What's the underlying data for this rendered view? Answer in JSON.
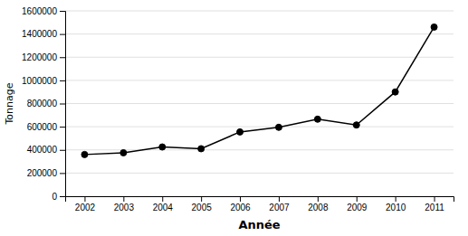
{
  "chart_data": {
    "type": "line",
    "x": [
      2002,
      2003,
      2004,
      2005,
      2006,
      2007,
      2008,
      2009,
      2010,
      2011
    ],
    "values": [
      360000,
      375000,
      425000,
      410000,
      555000,
      595000,
      665000,
      615000,
      900000,
      1460000
    ],
    "xlabel": "Année",
    "ylabel": "Tonnage",
    "xlim": [
      2001.5,
      2011.5
    ],
    "ylim": [
      0,
      1600000
    ],
    "xticks": [
      2002,
      2003,
      2004,
      2005,
      2006,
      2007,
      2008,
      2009,
      2010,
      2011
    ],
    "yticks": [
      0,
      200000,
      400000,
      600000,
      800000,
      1000000,
      1200000,
      1400000,
      1600000
    ],
    "color": "#000000",
    "marker": "circle",
    "grid": "y"
  }
}
